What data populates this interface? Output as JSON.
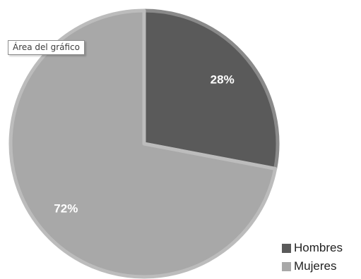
{
  "chart_data": {
    "type": "pie",
    "categories": [
      "Hombres",
      "Mujeres"
    ],
    "values": [
      28,
      72
    ],
    "labels": [
      "28%",
      "72%"
    ],
    "colors": [
      "#5a5a5a",
      "#a8a8a8"
    ],
    "stroke_colors": [
      "#8a8a8a",
      "#bcbcbc"
    ],
    "start_angle_deg": 0,
    "direction": "clockwise",
    "legend_position": "bottom-right"
  },
  "tooltip": {
    "text": "Área del gráfico"
  }
}
